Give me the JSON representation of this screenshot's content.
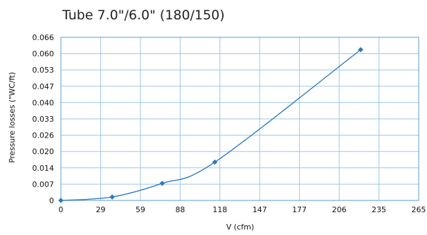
{
  "chart_data": {
    "type": "scatter",
    "title": "Tube 7.0\"/6.0\" (180/150)",
    "xlabel": "V (cfm)",
    "ylabel": "Pressure losses (\"WC/ft)",
    "xlim": [
      0,
      265
    ],
    "ylim": [
      0,
      0.066
    ],
    "x_ticks": [
      "0",
      "29",
      "59",
      "88",
      "118",
      "147",
      "177",
      "206",
      "235",
      "265"
    ],
    "y_ticks": [
      "0",
      "0.007",
      "0.014",
      "0.020",
      "0.026",
      "0.033",
      "0.040",
      "0.047",
      "0.053",
      "0.060",
      "0.066"
    ],
    "grid": true,
    "series": [
      {
        "x": [
          0,
          38,
          75,
          114,
          222
        ],
        "y": [
          0,
          0.0014,
          0.0069,
          0.0155,
          0.061
        ],
        "color": "#2e7bbf",
        "marker": "diamond",
        "smooth": true
      }
    ]
  }
}
